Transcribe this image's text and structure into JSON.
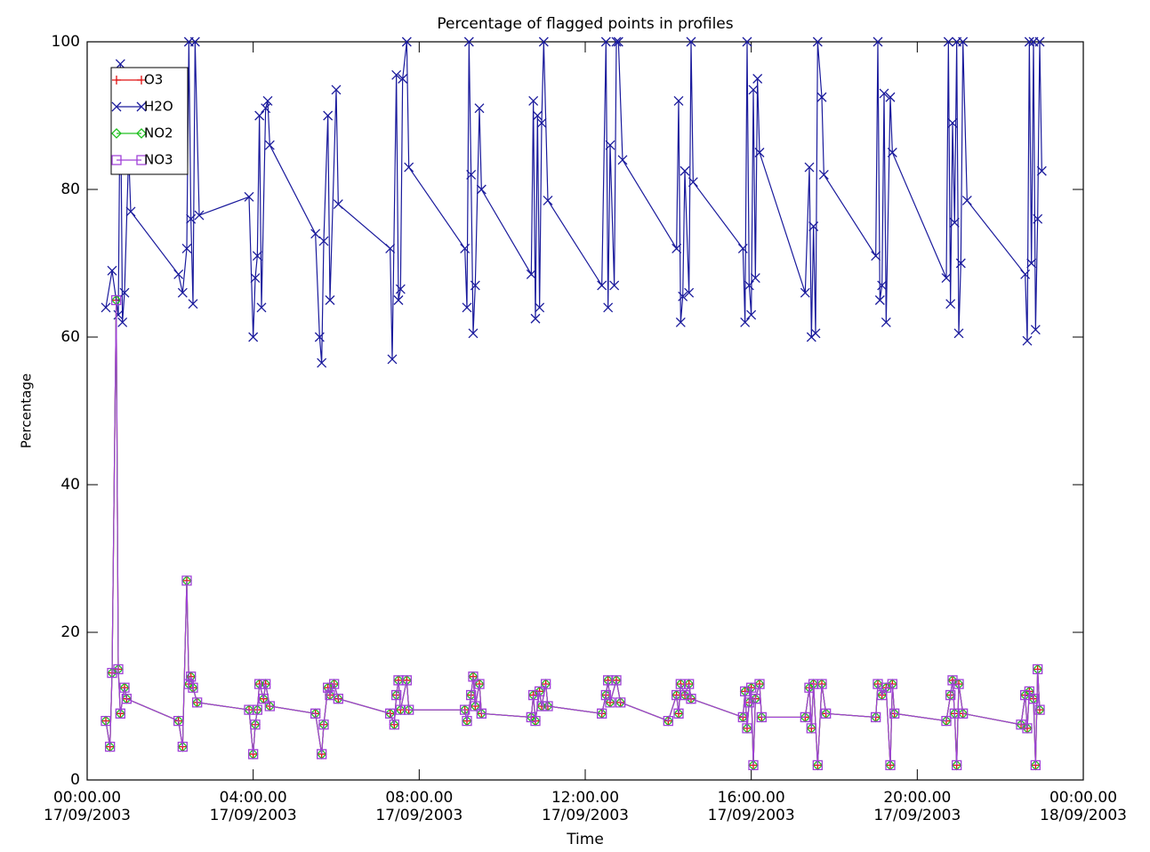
{
  "chart_data": {
    "type": "line",
    "title": "Percentage of flagged points in profiles",
    "x_label": "Time",
    "y_label": "Percentage",
    "xlim": [
      0,
      24
    ],
    "ylim": [
      0,
      100
    ],
    "xticks": [
      {
        "value": 0,
        "label": "00:00.00\n17/09/2003"
      },
      {
        "value": 4,
        "label": "04:00.00\n17/09/2003"
      },
      {
        "value": 8,
        "label": "08:00.00\n17/09/2003"
      },
      {
        "value": 12,
        "label": "12:00.00\n17/09/2003"
      },
      {
        "value": 16,
        "label": "16:00.00\n17/09/2003"
      },
      {
        "value": 20,
        "label": "20:00.00\n17/09/2003"
      },
      {
        "value": 24,
        "label": "00:00.00\n18/09/2003"
      }
    ],
    "yticks": [
      0,
      20,
      40,
      60,
      80,
      100
    ],
    "legend": "top-left",
    "x": [
      0.45,
      0.55,
      0.6,
      0.7,
      0.75,
      0.8,
      0.9,
      0.95,
      2.2,
      2.3,
      2.4,
      2.45,
      2.5,
      2.55,
      2.65,
      3.9,
      4.0,
      4.05,
      4.1,
      4.15,
      4.25,
      4.3,
      4.4,
      5.5,
      5.65,
      5.7,
      5.8,
      5.85,
      5.95,
      6.05,
      7.3,
      7.4,
      7.45,
      7.5,
      7.55,
      7.7,
      7.75,
      9.1,
      9.15,
      9.25,
      9.3,
      9.35,
      9.45,
      9.5,
      10.7,
      10.75,
      10.8,
      10.9,
      10.95,
      11.05,
      11.1,
      12.4,
      12.5,
      12.55,
      12.6,
      12.75,
      12.85,
      14.0,
      14.2,
      14.25,
      14.3,
      14.4,
      14.5,
      14.55,
      15.8,
      15.85,
      15.9,
      15.95,
      16.0,
      16.05,
      16.1,
      16.2,
      16.25,
      17.3,
      17.4,
      17.45,
      17.5,
      17.6,
      17.7,
      17.8,
      19.0,
      19.05,
      19.15,
      19.25,
      19.35,
      19.4,
      19.45,
      20.7,
      20.8,
      20.85,
      20.9,
      20.95,
      21.0,
      21.1,
      22.5,
      22.6,
      22.65,
      22.7,
      22.8,
      22.85,
      22.9,
      22.95
    ],
    "series": [
      {
        "name": "O3",
        "color": "#e01010",
        "marker": "plus",
        "values": [
          8,
          4.5,
          14.5,
          65,
          15,
          9,
          12.5,
          11,
          8,
          4.5,
          27,
          13,
          14,
          12.5,
          10.5,
          9.5,
          3.5,
          7.5,
          9.5,
          13,
          11,
          13,
          10,
          9,
          3.5,
          7.5,
          12.5,
          11.5,
          13,
          11,
          9,
          7.5,
          11.5,
          13.5,
          9.5,
          13.5,
          9.5,
          9.5,
          8,
          11.5,
          14,
          10,
          13,
          9,
          8.5,
          11.5,
          8,
          12,
          10,
          13,
          10,
          9,
          11.5,
          13.5,
          10.5,
          13.5,
          10.5,
          8,
          11.5,
          9,
          13,
          11.5,
          13,
          11,
          8.5,
          12,
          7,
          10.5,
          12.5,
          2,
          11,
          13,
          8.5,
          8.5,
          12.5,
          7,
          13,
          2,
          13,
          9,
          8.5,
          13,
          11.5,
          12.5,
          2,
          13,
          9,
          8,
          11.5,
          13.5,
          9,
          2,
          13,
          9,
          7.5,
          11.5,
          7,
          12,
          11,
          2,
          15,
          9.5
        ]
      },
      {
        "name": "H2O",
        "color": "#1a1a9c",
        "marker": "cross",
        "x": [
          0.45,
          0.6,
          0.75,
          0.8,
          0.85,
          0.9,
          1.0,
          1.05,
          2.2,
          2.3,
          2.4,
          2.45,
          2.5,
          2.55,
          2.6,
          2.7,
          3.9,
          4.0,
          4.05,
          4.1,
          4.15,
          4.2,
          4.3,
          4.35,
          4.4,
          5.5,
          5.6,
          5.65,
          5.7,
          5.8,
          5.85,
          6.0,
          6.05,
          7.3,
          7.35,
          7.45,
          7.5,
          7.55,
          7.6,
          7.7,
          7.75,
          9.1,
          9.15,
          9.2,
          9.25,
          9.3,
          9.35,
          9.45,
          9.5,
          10.7,
          10.75,
          10.8,
          10.85,
          10.9,
          10.95,
          11.0,
          11.1,
          12.4,
          12.5,
          12.55,
          12.6,
          12.7,
          12.75,
          12.8,
          12.9,
          14.2,
          14.25,
          14.3,
          14.35,
          14.4,
          14.5,
          14.55,
          14.6,
          15.8,
          15.85,
          15.9,
          15.95,
          16.0,
          16.05,
          16.1,
          16.15,
          16.2,
          17.3,
          17.4,
          17.45,
          17.5,
          17.55,
          17.6,
          17.7,
          17.75,
          19.0,
          19.05,
          19.1,
          19.15,
          19.2,
          19.25,
          19.35,
          19.4,
          20.7,
          20.75,
          20.8,
          20.85,
          20.9,
          20.95,
          21.0,
          21.05,
          21.1,
          21.2,
          22.6,
          22.65,
          22.7,
          22.75,
          22.8,
          22.85,
          22.9,
          22.95,
          23.0
        ],
        "values": [
          64,
          69,
          63,
          97,
          62,
          66,
          85,
          77,
          68.5,
          66,
          72,
          100,
          76,
          64.5,
          100,
          76.5,
          79,
          60,
          68,
          71,
          90,
          64,
          91,
          92,
          86,
          74,
          60,
          56.5,
          73,
          90,
          65,
          93.5,
          78,
          72,
          57,
          95.5,
          65,
          66.5,
          95,
          100,
          83,
          72,
          64,
          100,
          82,
          60.5,
          67,
          91,
          80,
          68.5,
          92,
          62.5,
          90,
          64,
          89,
          100,
          78.5,
          67,
          100,
          64,
          86,
          67,
          100,
          100,
          84,
          72,
          92,
          62,
          65.5,
          82.5,
          66,
          100,
          81,
          72,
          62,
          100,
          67,
          63,
          93.5,
          68,
          95,
          85,
          66,
          83,
          60,
          75,
          60.5,
          100,
          92.5,
          82,
          71,
          100,
          65,
          67,
          93,
          62,
          92.5,
          85,
          68,
          100,
          64.5,
          89,
          75.5,
          100,
          60.5,
          70,
          100,
          78.5,
          68.5,
          59.5,
          100,
          70,
          100,
          61,
          76,
          100,
          82.5
        ]
      },
      {
        "name": "NO2",
        "color": "#20c020",
        "marker": "diamond",
        "values": [
          8,
          4.5,
          14.5,
          65,
          15,
          9,
          12.5,
          11,
          8,
          4.5,
          27,
          13,
          14,
          12.5,
          10.5,
          9.5,
          3.5,
          7.5,
          9.5,
          13,
          11,
          13,
          10,
          9,
          3.5,
          7.5,
          12.5,
          11.5,
          13,
          11,
          9,
          7.5,
          11.5,
          13.5,
          9.5,
          13.5,
          9.5,
          9.5,
          8,
          11.5,
          14,
          10,
          13,
          9,
          8.5,
          11.5,
          8,
          12,
          10,
          13,
          10,
          9,
          11.5,
          13.5,
          10.5,
          13.5,
          10.5,
          8,
          11.5,
          9,
          13,
          11.5,
          13,
          11,
          8.5,
          12,
          7,
          10.5,
          12.5,
          2,
          11,
          13,
          8.5,
          8.5,
          12.5,
          7,
          13,
          2,
          13,
          9,
          8.5,
          13,
          11.5,
          12.5,
          2,
          13,
          9,
          8,
          11.5,
          13.5,
          9,
          2,
          13,
          9,
          7.5,
          11.5,
          7,
          12,
          11,
          2,
          15,
          9.5
        ]
      },
      {
        "name": "NO3",
        "color": "#a040d8",
        "marker": "square",
        "values": [
          8,
          4.5,
          14.5,
          65,
          15,
          9,
          12.5,
          11,
          8,
          4.5,
          27,
          13,
          14,
          12.5,
          10.5,
          9.5,
          3.5,
          7.5,
          9.5,
          13,
          11,
          13,
          10,
          9,
          3.5,
          7.5,
          12.5,
          11.5,
          13,
          11,
          9,
          7.5,
          11.5,
          13.5,
          9.5,
          13.5,
          9.5,
          9.5,
          8,
          11.5,
          14,
          10,
          13,
          9,
          8.5,
          11.5,
          8,
          12,
          10,
          13,
          10,
          9,
          11.5,
          13.5,
          10.5,
          13.5,
          10.5,
          8,
          11.5,
          9,
          13,
          11.5,
          13,
          11,
          8.5,
          12,
          7,
          10.5,
          12.5,
          2,
          11,
          13,
          8.5,
          8.5,
          12.5,
          7,
          13,
          2,
          13,
          9,
          8.5,
          13,
          11.5,
          12.5,
          2,
          13,
          9,
          8,
          11.5,
          13.5,
          9,
          2,
          13,
          9,
          7.5,
          11.5,
          7,
          12,
          11,
          2,
          15,
          9.5
        ]
      }
    ]
  }
}
